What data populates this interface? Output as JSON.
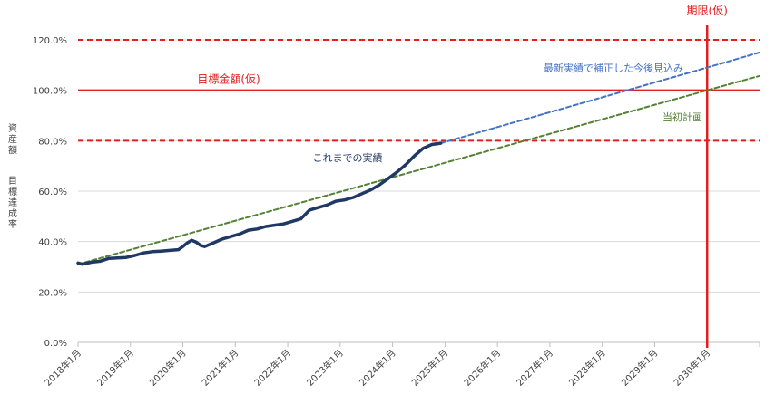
{
  "chart_data": {
    "type": "line",
    "ylabel_parts": [
      "資産額",
      "目標達成率"
    ],
    "y_ticks": [
      "0.0%",
      "20.0%",
      "40.0%",
      "60.0%",
      "80.0%",
      "100.0%",
      "120.0%"
    ],
    "ylim": [
      0,
      1.2
    ],
    "x_tick_labels": [
      "2018年1月",
      "2019年1月",
      "2020年1月",
      "2021年1月",
      "2022年1月",
      "2023年1月",
      "2024年1月",
      "2025年1月",
      "2026年1月",
      "2027年1月",
      "2028年1月",
      "2029年1月",
      "2030年1月"
    ],
    "xlim": [
      "2018-01",
      "2031-01"
    ],
    "grid": true,
    "reference_lines": [
      {
        "y": 1.2,
        "style": "dashed",
        "color": "#e02020"
      },
      {
        "y": 1.0,
        "style": "solid",
        "color": "#e02020",
        "label": "目標金額(仮)"
      },
      {
        "y": 0.8,
        "style": "dashed",
        "color": "#e02020"
      }
    ],
    "deadline": {
      "x": "2030-01",
      "label": "期限(仮)",
      "color": "#e02020"
    },
    "series": [
      {
        "name": "これまでの実績",
        "color": "#1f3864",
        "style": "solid",
        "points": [
          [
            "2018-01",
            0.315
          ],
          [
            "2018-02",
            0.31
          ],
          [
            "2018-04",
            0.318
          ],
          [
            "2018-06",
            0.322
          ],
          [
            "2018-08",
            0.333
          ],
          [
            "2018-10",
            0.335
          ],
          [
            "2018-12",
            0.337
          ],
          [
            "2019-02",
            0.345
          ],
          [
            "2019-04",
            0.355
          ],
          [
            "2019-06",
            0.36
          ],
          [
            "2019-08",
            0.362
          ],
          [
            "2019-10",
            0.365
          ],
          [
            "2019-12",
            0.368
          ],
          [
            "2020-01",
            0.38
          ],
          [
            "2020-02",
            0.395
          ],
          [
            "2020-03",
            0.405
          ],
          [
            "2020-04",
            0.398
          ],
          [
            "2020-05",
            0.385
          ],
          [
            "2020-06",
            0.38
          ],
          [
            "2020-08",
            0.395
          ],
          [
            "2020-10",
            0.41
          ],
          [
            "2020-12",
            0.42
          ],
          [
            "2021-02",
            0.43
          ],
          [
            "2021-04",
            0.445
          ],
          [
            "2021-06",
            0.45
          ],
          [
            "2021-08",
            0.46
          ],
          [
            "2021-10",
            0.465
          ],
          [
            "2021-12",
            0.47
          ],
          [
            "2022-02",
            0.48
          ],
          [
            "2022-04",
            0.49
          ],
          [
            "2022-06",
            0.525
          ],
          [
            "2022-08",
            0.535
          ],
          [
            "2022-10",
            0.545
          ],
          [
            "2022-12",
            0.56
          ],
          [
            "2023-02",
            0.565
          ],
          [
            "2023-04",
            0.575
          ],
          [
            "2023-06",
            0.59
          ],
          [
            "2023-08",
            0.605
          ],
          [
            "2023-10",
            0.625
          ],
          [
            "2023-12",
            0.65
          ],
          [
            "2024-02",
            0.675
          ],
          [
            "2024-04",
            0.705
          ],
          [
            "2024-06",
            0.74
          ],
          [
            "2024-08",
            0.77
          ],
          [
            "2024-10",
            0.785
          ],
          [
            "2024-12",
            0.79
          ]
        ]
      },
      {
        "name": "最新実績で補正した今後見込み",
        "color": "#4472c4",
        "style": "dashed",
        "points": [
          [
            "2024-12",
            0.79
          ],
          [
            "2030-01",
            1.09
          ],
          [
            "2031-01",
            1.15
          ]
        ]
      },
      {
        "name": "当初計画",
        "color": "#548235",
        "style": "dashed",
        "points": [
          [
            "2018-01",
            0.31
          ],
          [
            "2030-01",
            1.0
          ],
          [
            "2031-01",
            1.057
          ]
        ]
      }
    ]
  }
}
